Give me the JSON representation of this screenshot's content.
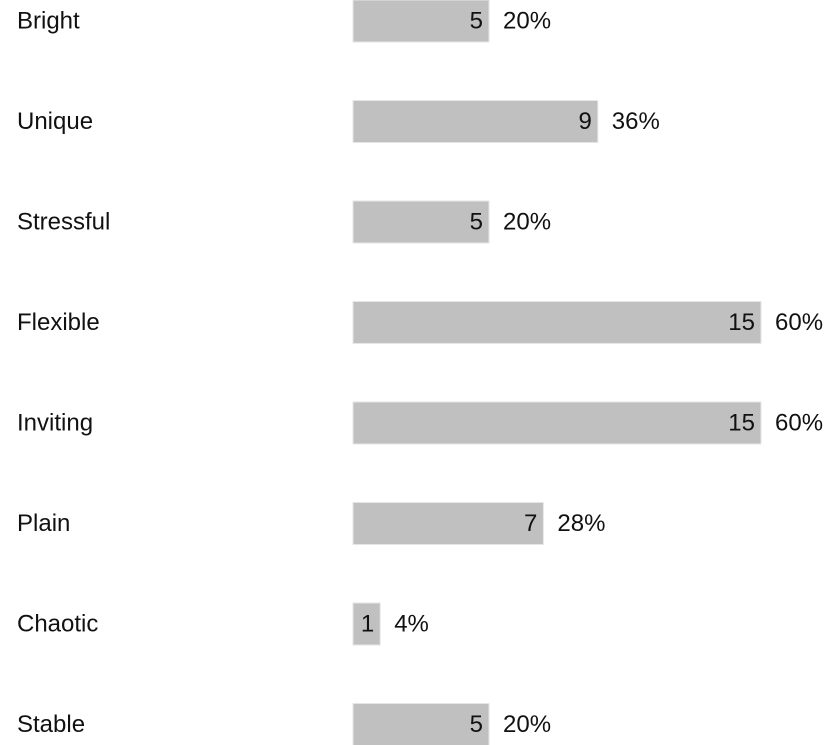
{
  "chart_data": {
    "type": "bar",
    "orientation": "horizontal",
    "categories": [
      "Bright",
      "Unique",
      "Stressful",
      "Flexible",
      "Inviting",
      "Plain",
      "Chaotic",
      "Stable"
    ],
    "values": [
      5,
      9,
      5,
      15,
      15,
      7,
      1,
      5
    ],
    "percent_labels": [
      "20%",
      "36%",
      "20%",
      "60%",
      "60%",
      "28%",
      "4%",
      "20%"
    ],
    "xlim": [
      0,
      15
    ],
    "grid": false,
    "legend": "none",
    "title": "",
    "xlabel": "",
    "ylabel": ""
  },
  "colors": {
    "bar": "#c0c0c0",
    "bar_edge": "#e6e6e6",
    "text": "#111111",
    "background": "#ffffff"
  }
}
